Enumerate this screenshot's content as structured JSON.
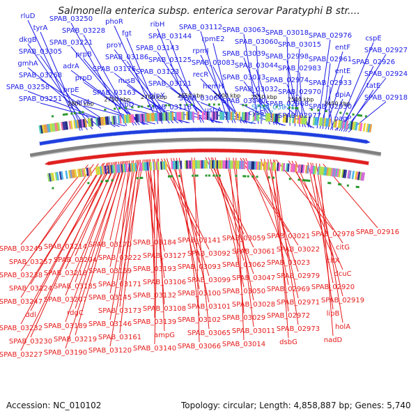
{
  "title": "Salmonella enterica subsp. enterica serovar Paratyphi B str....",
  "footer": {
    "accession": "Accession: NC_010102",
    "summary": "Topology: circular; Length: 4,858,887 bp; Genes: 5,740"
  },
  "colors": {
    "forward_label": "#1a1ae6",
    "reverse_label": "#e61a1a",
    "highlight_label": "#3aa0e8",
    "forward_strand": "#1f3fe0",
    "reverse_strand": "#e02020",
    "backbone": "#808080",
    "marker": "#2e9a2e"
  },
  "icons": {
    "forward_gene": "right-arrow-shape",
    "reverse_gene": "left-arrow-shape"
  },
  "scale_labels": [
    {
      "text": "2800 kbp",
      "kbp": 2800
    },
    {
      "text": "2750 kbp",
      "kbp": 2750
    },
    {
      "text": "2700 kbp",
      "kbp": 2700
    },
    {
      "text": "2650 kbp",
      "kbp": 2650
    },
    {
      "text": "2600 kbp",
      "kbp": 2600
    },
    {
      "text": "2550 kbp",
      "kbp": 2550
    },
    {
      "text": "2500 kbp",
      "kbp": 2500
    },
    {
      "text": "2450 kbp",
      "kbp": 2450
    }
  ],
  "forward_labels": [
    {
      "text": "rluD",
      "kbp": 2805
    },
    {
      "text": "tyrA",
      "kbp": 2802
    },
    {
      "text": "dkgB",
      "kbp": 2795
    },
    {
      "text": "SPAB_03305",
      "kbp": 2788
    },
    {
      "text": "gmhA",
      "kbp": 2776
    },
    {
      "text": "SPAB_03251",
      "kbp": 2742
    },
    {
      "text": "SPAB_03258",
      "kbp": 2750
    },
    {
      "text": "prpB",
      "kbp": 2722
    },
    {
      "text": "adrA",
      "kbp": 2716
    },
    {
      "text": "SPAB_03268",
      "kbp": 2756
    },
    {
      "text": "SPAB_03228",
      "kbp": 2730
    },
    {
      "text": "phoR",
      "kbp": 2696
    },
    {
      "text": "SPAB_03250",
      "kbp": 2740
    },
    {
      "text": "prpE",
      "kbp": 2710
    },
    {
      "text": "proY",
      "kbp": 2680
    },
    {
      "text": "SPAB_03221",
      "kbp": 2726
    },
    {
      "text": "SPAB_03176",
      "kbp": 2668
    },
    {
      "text": "prpD",
      "kbp": 2714
    },
    {
      "text": "SPAB_03163",
      "kbp": 2655
    },
    {
      "text": "aroL",
      "kbp": 2700
    },
    {
      "text": "SPAB_03186",
      "kbp": 2675
    },
    {
      "text": "fgt",
      "kbp": 2690
    },
    {
      "text": "nusB",
      "kbp": 2662
    },
    {
      "text": "ribD",
      "kbp": 2652
    },
    {
      "text": "ribH",
      "kbp": 2646
    },
    {
      "text": "SPAB_03143",
      "kbp": 2632
    },
    {
      "text": "clpX",
      "kbp": 2610
    },
    {
      "text": "SPAB_03144",
      "kbp": 2636
    },
    {
      "text": "SPAB_03125",
      "kbp": 2620
    },
    {
      "text": "SPAB_03118",
      "kbp": 2606
    },
    {
      "text": "SPAB_03112",
      "kbp": 2598
    },
    {
      "text": "SPAB_03121",
      "kbp": 2614
    },
    {
      "text": "SPAB_03123",
      "kbp": 2618
    },
    {
      "text": "rpmE2",
      "kbp": 2592
    },
    {
      "text": "rpmJ",
      "kbp": 2588
    },
    {
      "text": "recR",
      "kbp": 2575
    },
    {
      "text": "SPAB_03064",
      "kbp": 2565
    },
    {
      "text": "SPAB_03083",
      "kbp": 2580
    },
    {
      "text": "ushA",
      "kbp": 2560
    },
    {
      "text": "hemH",
      "kbp": 2572
    },
    {
      "text": "SPAB_03060",
      "kbp": 2552
    },
    {
      "text": "SPAB_03063",
      "kbp": 2556
    },
    {
      "text": "SPAB_03039",
      "kbp": 2540
    },
    {
      "text": "SPAB_03044",
      "kbp": 2534
    },
    {
      "text": "SPAB_03033",
      "kbp": 2530
    },
    {
      "text": "SPAB_03032",
      "kbp": 2526
    },
    {
      "text": "SPAB_03040",
      "kbp": 2522
    },
    {
      "text": "cysS",
      "kbp": 2518
    },
    {
      "text": "SPAB_03018",
      "kbp": 2512
    },
    {
      "text": "SPAB_03015",
      "kbp": 2505
    },
    {
      "text": "SPAB_02998",
      "kbp": 2498
    },
    {
      "text": "SPAB_02974",
      "kbp": 2490
    },
    {
      "text": "SPAB_02983",
      "kbp": 2494
    },
    {
      "text": "SPAB_02970",
      "kbp": 2486
    },
    {
      "text": "SPAB_02968",
      "kbp": 2482
    },
    {
      "text": "SPAB_02977",
      "kbp": 2478
    },
    {
      "text": "SPAB_02976",
      "kbp": 2474
    },
    {
      "text": "entF",
      "kbp": 2470
    },
    {
      "text": "SPAB_02961",
      "kbp": 2466
    },
    {
      "text": "entE",
      "kbp": 2462
    },
    {
      "text": "SPAB_02933",
      "kbp": 2458
    },
    {
      "text": "dpiA",
      "kbp": 2455
    },
    {
      "text": "SPAB_02930",
      "kbp": 2452
    },
    {
      "text": "pagP",
      "kbp": 2449
    },
    {
      "text": "cspE",
      "kbp": 2446
    },
    {
      "text": "SPAB_02927",
      "kbp": 2443
    },
    {
      "text": "SPAB_02926",
      "kbp": 2440
    },
    {
      "text": "SPAB_02924",
      "kbp": 2437
    },
    {
      "text": "tatE",
      "kbp": 2434
    },
    {
      "text": "SPAB_02918",
      "kbp": 2430
    }
  ],
  "highlight_labels": [
    {
      "text": "SPAB_03071",
      "kbp": 2569
    }
  ],
  "reverse_labels": [
    {
      "text": "SPAB_03249",
      "kbp": 2800
    },
    {
      "text": "SPAB_03257",
      "kbp": 2792
    },
    {
      "text": "SPAB_03224",
      "kbp": 2778
    },
    {
      "text": "SPAB_03238",
      "kbp": 2785
    },
    {
      "text": "ddl",
      "kbp": 2772
    },
    {
      "text": "SPAB_03230",
      "kbp": 2768
    },
    {
      "text": "SPAB_03185",
      "kbp": 2755
    },
    {
      "text": "rdgC",
      "kbp": 2750
    },
    {
      "text": "SPAB_03170",
      "kbp": 2742
    },
    {
      "text": "SPAB_03247",
      "kbp": 2776
    },
    {
      "text": "SPAB_03204",
      "kbp": 2760
    },
    {
      "text": "SPAB_03159",
      "kbp": 2736
    },
    {
      "text": "SPAB_03120",
      "kbp": 2720
    },
    {
      "text": "SPAB_03227",
      "kbp": 2765
    },
    {
      "text": "SPAB_03189",
      "kbp": 2748
    },
    {
      "text": "SPAB_03145",
      "kbp": 2730
    },
    {
      "text": "SPAB_03106",
      "kbp": 2712
    },
    {
      "text": "SPAB_03232",
      "kbp": 2770
    },
    {
      "text": "SPAB_03190",
      "kbp": 2744
    },
    {
      "text": "SPAB_03146",
      "kbp": 2726
    },
    {
      "text": "SPAB_03108",
      "kbp": 2706
    },
    {
      "text": "SPAB_03065",
      "kbp": 2650
    },
    {
      "text": "SPAB_03028",
      "kbp": 2600
    },
    {
      "text": "SPAB_02979",
      "kbp": 2550
    },
    {
      "text": "dsbG",
      "kbp": 2530
    },
    {
      "text": "dcuC",
      "kbp": 2500
    },
    {
      "text": "holA",
      "kbp": 2470
    },
    {
      "text": "SPAB_03066",
      "kbp": 2646
    },
    {
      "text": "SPAB_03214",
      "kbp": 2762
    },
    {
      "text": "SPAB_03171",
      "kbp": 2734
    },
    {
      "text": "SPAB_03127",
      "kbp": 2716
    },
    {
      "text": "SPAB_03092",
      "kbp": 2690
    },
    {
      "text": "SPAB_03029",
      "kbp": 2596
    },
    {
      "text": "SPAB_02969",
      "kbp": 2545
    },
    {
      "text": "citX",
      "kbp": 2505
    },
    {
      "text": "nadD",
      "kbp": 2465
    },
    {
      "text": "SPAB_03047",
      "kbp": 2620
    },
    {
      "text": "SPAB_03011",
      "kbp": 2590
    },
    {
      "text": "SPAB_03218",
      "kbp": 2758
    },
    {
      "text": "SPAB_03173",
      "kbp": 2728
    },
    {
      "text": "SPAB_03132",
      "kbp": 2710
    },
    {
      "text": "SPAB_03093",
      "kbp": 2686
    },
    {
      "text": "SPAB_02971",
      "kbp": 2540
    },
    {
      "text": "SPAB_03207",
      "kbp": 2752
    },
    {
      "text": "SPAB_03099",
      "kbp": 2680
    },
    {
      "text": "SPAB_03050",
      "kbp": 2616
    },
    {
      "text": "SPAB_03014",
      "kbp": 2586
    },
    {
      "text": "SPAB_02916",
      "kbp": 2460
    },
    {
      "text": "ampG",
      "kbp": 2700
    },
    {
      "text": "SPAB_03161",
      "kbp": 2724
    },
    {
      "text": "SPAB_03219",
      "kbp": 2746
    },
    {
      "text": "SPAB_03059",
      "kbp": 2630
    },
    {
      "text": "SPAB_03021",
      "kbp": 2580
    },
    {
      "text": "SPAB_02972",
      "kbp": 2536
    },
    {
      "text": "citG",
      "kbp": 2510
    },
    {
      "text": "lipB",
      "kbp": 2475
    },
    {
      "text": "SPAB_03222",
      "kbp": 2740
    },
    {
      "text": "SPAB_03184",
      "kbp": 2718
    },
    {
      "text": "SPAB_03139",
      "kbp": 2704
    },
    {
      "text": "SPAB_03100",
      "kbp": 2676
    },
    {
      "text": "SPAB_03061",
      "kbp": 2626
    },
    {
      "text": "SPAB_03022",
      "kbp": 2576
    },
    {
      "text": "SPAB_02973",
      "kbp": 2532
    },
    {
      "text": "SPAB_02919",
      "kbp": 2478
    },
    {
      "text": "SPAB_03193",
      "kbp": 2714
    },
    {
      "text": "SPAB_03140",
      "kbp": 2698
    },
    {
      "text": "SPAB_03101",
      "kbp": 2672
    },
    {
      "text": "SPAB_03062",
      "kbp": 2622
    },
    {
      "text": "SPAB_03023",
      "kbp": 2572
    },
    {
      "text": "SPAB_02978",
      "kbp": 2528
    },
    {
      "text": "SPAB_02920",
      "kbp": 2482
    },
    {
      "text": "SPAB_03141",
      "kbp": 2694
    },
    {
      "text": "SPAB_03102",
      "kbp": 2668
    }
  ]
}
